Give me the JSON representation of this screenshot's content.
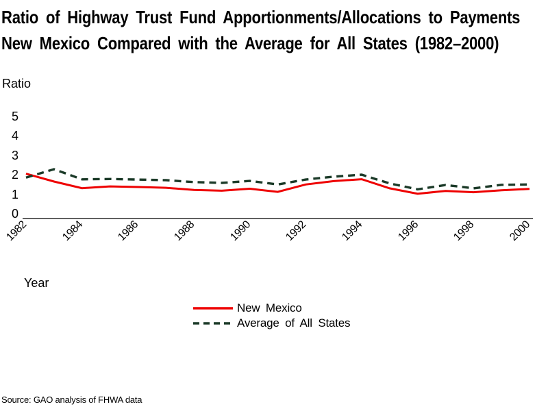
{
  "title": {
    "line1": "Ratio of Highway Trust Fund Apportionments/Allocations to Payments",
    "line2": "New Mexico Compared with the Average for All States (1982–2000)"
  },
  "axes": {
    "y_label": "Ratio",
    "x_label": "Year"
  },
  "source": "Source: GAO analysis of FHWA data",
  "colors": {
    "new_mexico_line": "#ee0000",
    "average_line": "#1b3a28",
    "axis": "#000000",
    "background": "#ffffff"
  },
  "chart_data": {
    "type": "line",
    "title": "Ratio of Highway Trust Fund Apportionments/Allocations to Payments — New Mexico Compared with the Average for All States (1982–2000)",
    "xlabel": "Year",
    "ylabel": "Ratio",
    "ylim": [
      0,
      5
    ],
    "grid": false,
    "legend_position": "below-chart-center",
    "x": [
      1982,
      1983,
      1984,
      1985,
      1986,
      1987,
      1988,
      1989,
      1990,
      1991,
      1992,
      1993,
      1994,
      1995,
      1996,
      1997,
      1998,
      1999,
      2000
    ],
    "x_tick_labels": [
      "1982",
      "1984",
      "1986",
      "1988",
      "1990",
      "1992",
      "1994",
      "1996",
      "1998",
      "2000"
    ],
    "y_ticks": [
      0,
      1,
      2,
      3,
      4,
      5
    ],
    "series": [
      {
        "name": "New Mexico",
        "style": "solid",
        "color": "#ee0000",
        "values": [
          2.05,
          1.65,
          1.31,
          1.4,
          1.37,
          1.33,
          1.22,
          1.18,
          1.28,
          1.12,
          1.5,
          1.67,
          1.77,
          1.3,
          1.02,
          1.17,
          1.1,
          1.2,
          1.27
        ]
      },
      {
        "name": "Average of All States",
        "style": "dashed",
        "color": "#1b3a28",
        "values": [
          1.85,
          2.28,
          1.76,
          1.78,
          1.75,
          1.72,
          1.62,
          1.58,
          1.68,
          1.5,
          1.75,
          1.9,
          2.0,
          1.55,
          1.25,
          1.47,
          1.3,
          1.48,
          1.5
        ]
      }
    ]
  }
}
